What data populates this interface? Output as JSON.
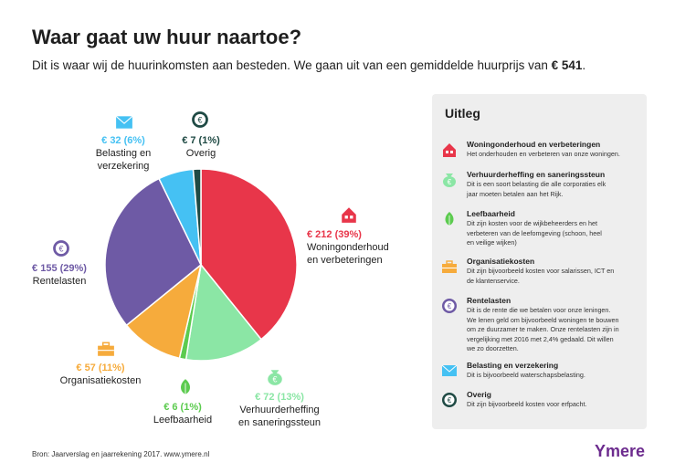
{
  "header": {
    "title": "Waar gaat uw huur naartoe?",
    "subtitle_text": "Dit is waar wij de huurinkomsten aan besteden. We gaan uit van een gemiddelde huurprijs van ",
    "subtitle_amount": "€ 541",
    "subtitle_end": "."
  },
  "chart_data": {
    "type": "pie",
    "slices": [
      {
        "label": "Woningonderhoud en verbeteringen",
        "value": 212,
        "percent": 39,
        "display_value": "€ 212 (39%)",
        "name_lines": [
          "Woningonderhoud",
          "en verbeteringen"
        ],
        "color": "#e8364a",
        "icon": "house-icon"
      },
      {
        "label": "Verhuurderheffing en saneringssteun",
        "value": 72,
        "percent": 13,
        "display_value": "€ 72 (13%)",
        "name_lines": [
          "Verhuurderheffing",
          "en saneringssteun"
        ],
        "color": "#8be6a5",
        "icon": "money-bag-icon"
      },
      {
        "label": "Leefbaarheid",
        "value": 6,
        "percent": 1,
        "display_value": "€ 6 (1%)",
        "name_lines": [
          "Leefbaarheid"
        ],
        "color": "#5ccb4f",
        "icon": "leaf-icon"
      },
      {
        "label": "Organisatiekosten",
        "value": 57,
        "percent": 11,
        "display_value": "€ 57 (11%)",
        "name_lines": [
          "Organisatiekosten"
        ],
        "color": "#f6ab3c",
        "icon": "briefcase-icon"
      },
      {
        "label": "Rentelasten",
        "value": 155,
        "percent": 29,
        "display_value": "€ 155 (29%)",
        "name_lines": [
          "Rentelasten"
        ],
        "color": "#6e5aa5",
        "icon": "euro-coin-icon"
      },
      {
        "label": "Belasting en verzekering",
        "value": 32,
        "percent": 6,
        "display_value": "€ 32 (6%)",
        "name_lines": [
          "Belasting en",
          "verzekering"
        ],
        "color": "#45c1f3",
        "icon": "envelope-icon"
      },
      {
        "label": "Overig",
        "value": 7,
        "percent": 1,
        "display_value": "€ 7 (1%)",
        "name_lines": [
          "Overig"
        ],
        "color": "#1f4a44",
        "icon": "euro-dark-icon"
      }
    ]
  },
  "legend": {
    "title": "Uitleg",
    "items": [
      {
        "heading": "Woningonderhoud en verbeteringen",
        "lines": [
          "Het onderhouden en verbeteren van onze woningen."
        ]
      },
      {
        "heading": "Verhuurderheffing en saneringssteun",
        "lines": [
          "Dit is een soort belasting die alle corporaties elk",
          "jaar moeten betalen aan het Rijk."
        ]
      },
      {
        "heading": "Leefbaarheid",
        "lines": [
          "Dit zijn kosten voor de wijkbeheerders en het",
          "verbeteren van de leefomgeving (schoon, heel",
          "en veilige wijken)"
        ]
      },
      {
        "heading": "Organisatiekosten",
        "lines": [
          "Dit zijn bijvoorbeeld kosten voor salarissen, ICT en",
          "de klantenservice."
        ]
      },
      {
        "heading": "Rentelasten",
        "lines": [
          "Dit is de rente die we betalen voor onze leningen.",
          "We lenen geld om bijvoorbeeld woningen te bouwen",
          "om ze duurzamer te maken. Onze rentelasten zijn in",
          "vergelijking met 2016 met 2,4% gedaald. Dit willen",
          "we zo doorzetten."
        ]
      },
      {
        "heading": "Belasting en verzekering",
        "lines": [
          "Dit is bijvoorbeeld waterschapsbelasting."
        ]
      },
      {
        "heading": "Overig",
        "lines": [
          "Dit zijn bijvoorbeeld kosten voor erfpacht."
        ]
      }
    ]
  },
  "footer": {
    "source": "Bron: Jaarverslag en jaarrekening 2017. www.ymere.nl",
    "brand": "Ymere"
  }
}
